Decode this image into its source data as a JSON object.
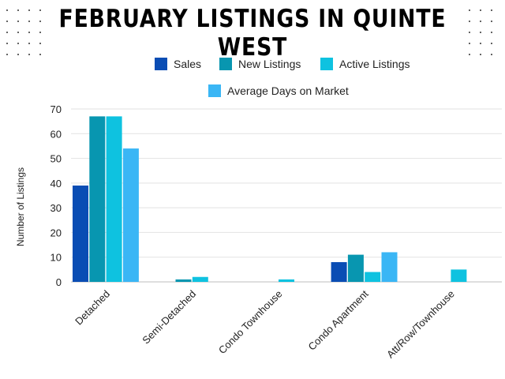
{
  "page": {
    "title": "FEBRUARY LISTINGS IN QUINTE WEST"
  },
  "chart_data": {
    "type": "bar",
    "title": "FEBRUARY LISTINGS IN QUINTE WEST",
    "xlabel": "",
    "ylabel": "Number of Listings",
    "ylim": [
      0,
      70
    ],
    "yticks": [
      0,
      10,
      20,
      30,
      40,
      50,
      60,
      70
    ],
    "grid": true,
    "legend_position": "top",
    "categories": [
      "Detached",
      "Semi-Detached",
      "Condo Townhouse",
      "Condo Apartment",
      "Att/Row/Townhouse"
    ],
    "series": [
      {
        "name": "Sales",
        "color": "#0a4db4",
        "values": [
          39,
          0,
          0,
          8,
          0
        ]
      },
      {
        "name": "New Listings",
        "color": "#0896b0",
        "values": [
          67,
          1,
          0,
          11,
          0
        ]
      },
      {
        "name": "Active Listings",
        "color": "#0ec2e0",
        "values": [
          67,
          2,
          1,
          4,
          5
        ]
      },
      {
        "name": "Average Days on Market",
        "color": "#3ab6f5",
        "values": [
          54,
          0,
          0,
          12,
          0
        ]
      }
    ]
  }
}
